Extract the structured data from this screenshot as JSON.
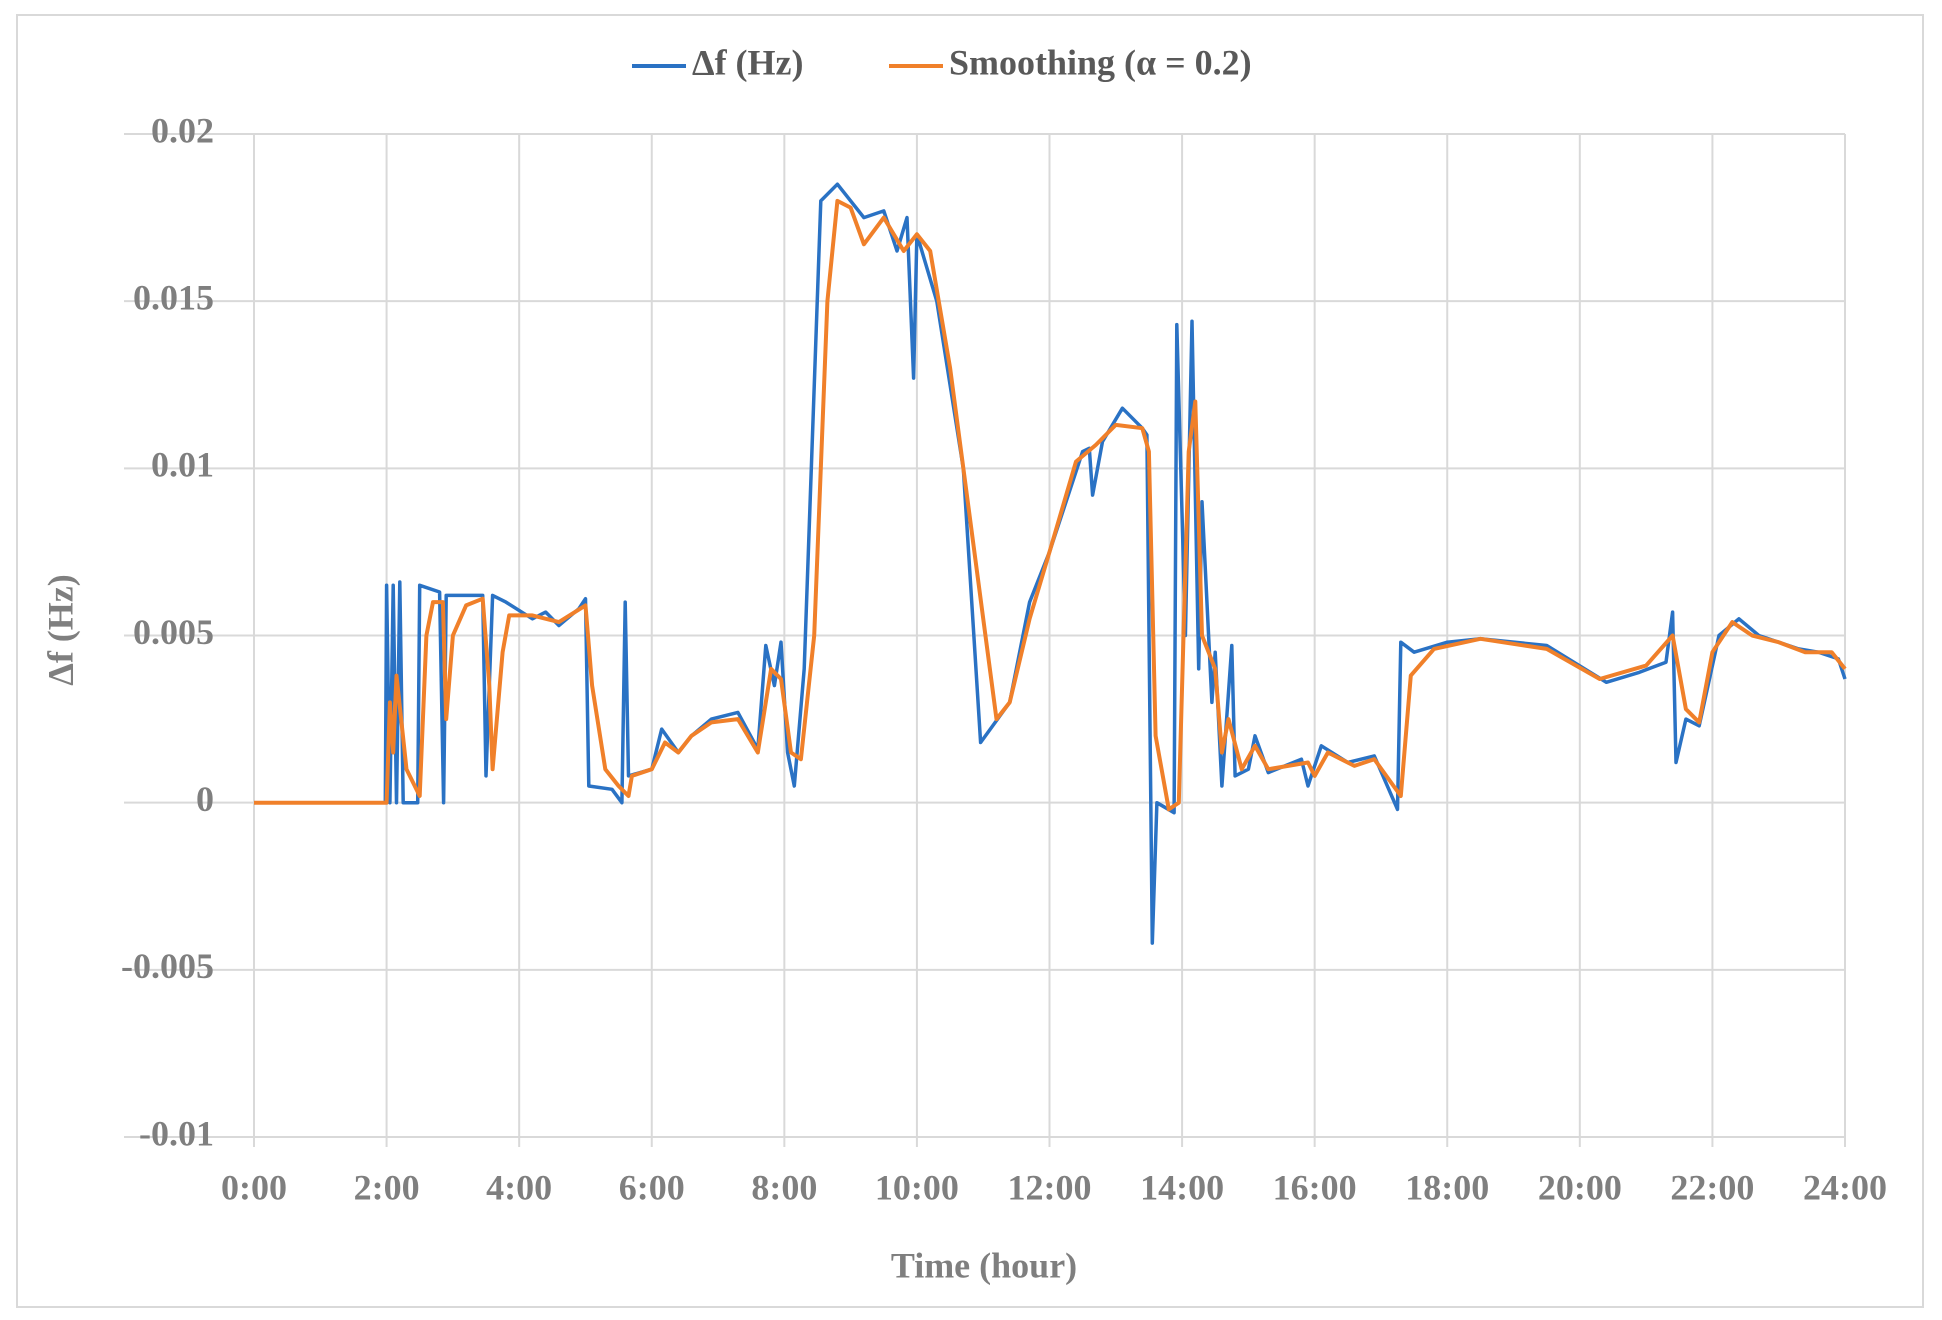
{
  "chart_data": {
    "type": "line",
    "x_label": "Time (hour)",
    "y_label": "Δf (Hz)",
    "xlim": [
      0,
      24
    ],
    "ylim": [
      -0.01,
      0.02
    ],
    "xticks": [
      {
        "value": 0,
        "label": "0:00"
      },
      {
        "value": 2,
        "label": "2:00"
      },
      {
        "value": 4,
        "label": "4:00"
      },
      {
        "value": 6,
        "label": "6:00"
      },
      {
        "value": 8,
        "label": "8:00"
      },
      {
        "value": 10,
        "label": "10:00"
      },
      {
        "value": 12,
        "label": "12:00"
      },
      {
        "value": 14,
        "label": "14:00"
      },
      {
        "value": 16,
        "label": "16:00"
      },
      {
        "value": 18,
        "label": "18:00"
      },
      {
        "value": 20,
        "label": "20:00"
      },
      {
        "value": 22,
        "label": "22:00"
      },
      {
        "value": 24,
        "label": "24:00"
      }
    ],
    "yticks": [
      0.02,
      0.015,
      0.01,
      0.005,
      0,
      -0.005,
      -0.01
    ],
    "grid": true,
    "legend": "top",
    "series": [
      {
        "name": "Δf (Hz)",
        "color": "#2a72c4",
        "x": [
          0,
          1.98,
          2.0,
          2.05,
          2.1,
          2.15,
          2.2,
          2.25,
          2.47,
          2.5,
          2.8,
          2.86,
          2.9,
          3.45,
          3.5,
          3.6,
          3.8,
          4.2,
          4.4,
          4.6,
          4.9,
          5.0,
          5.05,
          5.4,
          5.55,
          5.6,
          5.65,
          6.0,
          6.15,
          6.4,
          6.6,
          6.9,
          7.3,
          7.6,
          7.72,
          7.85,
          7.95,
          8.05,
          8.15,
          8.3,
          8.55,
          8.8,
          9.2,
          9.5,
          9.7,
          9.85,
          9.95,
          10.0,
          10.3,
          10.7,
          10.96,
          11.4,
          11.7,
          12.0,
          12.5,
          12.6,
          12.65,
          12.8,
          13.1,
          13.4,
          13.47,
          13.55,
          13.62,
          13.88,
          13.92,
          14.05,
          14.15,
          14.25,
          14.3,
          14.45,
          14.5,
          14.6,
          14.75,
          14.8,
          15.0,
          15.1,
          15.3,
          15.8,
          15.9,
          16.1,
          16.5,
          16.9,
          17.25,
          17.3,
          17.5,
          18.0,
          18.5,
          19.5,
          20.4,
          20.9,
          21.3,
          21.4,
          21.45,
          21.6,
          21.8,
          22.1,
          22.4,
          22.7,
          23.3,
          23.6,
          23.9,
          24
        ],
        "values": [
          0,
          0,
          0.0065,
          0,
          0.0065,
          0,
          0.0066,
          0,
          0,
          0.0065,
          0.0063,
          0,
          0.0062,
          0.0062,
          0.0008,
          0.0062,
          0.006,
          0.0055,
          0.0057,
          0.0053,
          0.0058,
          0.0061,
          0.0005,
          0.0004,
          0,
          0.006,
          0.0008,
          0.001,
          0.0022,
          0.0015,
          0.002,
          0.0025,
          0.0027,
          0.0016,
          0.0047,
          0.0035,
          0.0048,
          0.0015,
          0.0005,
          0.004,
          0.018,
          0.0185,
          0.0175,
          0.0177,
          0.0165,
          0.0175,
          0.0127,
          0.017,
          0.015,
          0.01,
          0.0018,
          0.003,
          0.006,
          0.0075,
          0.0105,
          0.0106,
          0.0092,
          0.0108,
          0.0118,
          0.0112,
          0.011,
          -0.0042,
          0,
          -0.0003,
          0.0143,
          0.005,
          0.0144,
          0.004,
          0.009,
          0.003,
          0.0045,
          0.0005,
          0.0047,
          0.0008,
          0.001,
          0.002,
          0.0009,
          0.0013,
          0.0005,
          0.0017,
          0.0012,
          0.0014,
          -0.0002,
          0.0048,
          0.0045,
          0.0048,
          0.0049,
          0.0047,
          0.0036,
          0.0039,
          0.0042,
          0.0057,
          0.0012,
          0.0025,
          0.0023,
          0.005,
          0.0055,
          0.005,
          0.0046,
          0.0045,
          0.0043,
          0.0037
        ]
      },
      {
        "name": "Smoothing (α = 0.2)",
        "color": "#f0802a",
        "x": [
          0,
          2.0,
          2.05,
          2.1,
          2.15,
          2.3,
          2.5,
          2.6,
          2.7,
          2.85,
          2.9,
          3.0,
          3.2,
          3.45,
          3.55,
          3.6,
          3.75,
          3.85,
          4.2,
          4.6,
          5.0,
          5.1,
          5.3,
          5.5,
          5.65,
          5.7,
          6.0,
          6.2,
          6.4,
          6.6,
          6.9,
          7.3,
          7.6,
          7.8,
          7.95,
          8.1,
          8.25,
          8.45,
          8.65,
          8.8,
          9.0,
          9.2,
          9.5,
          9.8,
          10.0,
          10.2,
          10.5,
          10.9,
          11.2,
          11.4,
          11.7,
          12.0,
          12.4,
          12.7,
          13.0,
          13.4,
          13.5,
          13.6,
          13.8,
          13.95,
          14.1,
          14.2,
          14.3,
          14.5,
          14.6,
          14.7,
          14.9,
          15.1,
          15.3,
          15.9,
          16.0,
          16.2,
          16.6,
          16.9,
          17.3,
          17.45,
          17.8,
          18.5,
          19.5,
          20.3,
          21.0,
          21.4,
          21.6,
          21.8,
          22.0,
          22.3,
          22.6,
          23.0,
          23.4,
          23.8,
          24
        ],
        "values": [
          0,
          0,
          0.003,
          0.0015,
          0.0038,
          0.001,
          0.0002,
          0.005,
          0.006,
          0.006,
          0.0025,
          0.005,
          0.0059,
          0.0061,
          0.0035,
          0.001,
          0.0045,
          0.0056,
          0.0056,
          0.0054,
          0.0059,
          0.0035,
          0.001,
          0.0005,
          0.0002,
          0.0008,
          0.001,
          0.0018,
          0.0015,
          0.002,
          0.0024,
          0.0025,
          0.0015,
          0.004,
          0.0037,
          0.0015,
          0.0013,
          0.005,
          0.015,
          0.018,
          0.0178,
          0.0167,
          0.0175,
          0.0165,
          0.017,
          0.0165,
          0.013,
          0.007,
          0.0025,
          0.003,
          0.0055,
          0.0075,
          0.0102,
          0.0107,
          0.0113,
          0.0112,
          0.0105,
          0.002,
          -0.0002,
          0,
          0.0105,
          0.012,
          0.005,
          0.004,
          0.0015,
          0.0025,
          0.001,
          0.0017,
          0.001,
          0.0012,
          0.0008,
          0.0015,
          0.0011,
          0.0013,
          0.0002,
          0.0038,
          0.0046,
          0.0049,
          0.0046,
          0.0037,
          0.0041,
          0.005,
          0.0028,
          0.0024,
          0.0045,
          0.0054,
          0.005,
          0.0048,
          0.0045,
          0.0045,
          0.004
        ]
      }
    ]
  }
}
